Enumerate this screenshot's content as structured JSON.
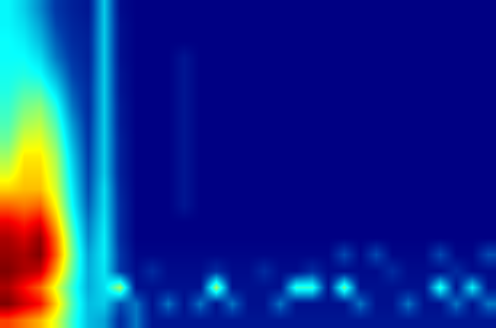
{
  "chart_data": {
    "type": "heatmap",
    "color": "Jet",
    "tick_labels": false,
    "cells": [
      [
        0.35,
        0.3,
        0.22,
        0.12,
        0.08,
        0.06,
        0.3,
        0.04,
        0.02,
        0.02,
        0.02,
        0.02,
        0.02,
        0.02,
        0.02,
        0.02,
        0.02,
        0.02,
        0.02,
        0.02,
        0.02,
        0.02,
        0.02,
        0.02,
        0.02,
        0.02,
        0.02,
        0.02,
        0.02,
        0.02,
        0.02
      ],
      [
        0.35,
        0.32,
        0.25,
        0.14,
        0.09,
        0.07,
        0.3,
        0.05,
        0.02,
        0.02,
        0.02,
        0.02,
        0.02,
        0.02,
        0.02,
        0.02,
        0.02,
        0.02,
        0.02,
        0.02,
        0.02,
        0.02,
        0.02,
        0.02,
        0.02,
        0.02,
        0.02,
        0.02,
        0.02,
        0.02,
        0.02
      ],
      [
        0.36,
        0.34,
        0.28,
        0.17,
        0.1,
        0.08,
        0.3,
        0.05,
        0.02,
        0.02,
        0.02,
        0.02,
        0.02,
        0.02,
        0.02,
        0.02,
        0.02,
        0.02,
        0.02,
        0.02,
        0.02,
        0.02,
        0.02,
        0.02,
        0.02,
        0.02,
        0.02,
        0.02,
        0.02,
        0.02,
        0.02
      ],
      [
        0.36,
        0.36,
        0.32,
        0.2,
        0.12,
        0.08,
        0.3,
        0.05,
        0.02,
        0.02,
        0.02,
        0.06,
        0.02,
        0.02,
        0.02,
        0.02,
        0.02,
        0.02,
        0.02,
        0.02,
        0.02,
        0.02,
        0.02,
        0.02,
        0.02,
        0.02,
        0.02,
        0.02,
        0.02,
        0.02,
        0.02
      ],
      [
        0.37,
        0.38,
        0.36,
        0.26,
        0.14,
        0.09,
        0.3,
        0.06,
        0.02,
        0.02,
        0.02,
        0.06,
        0.02,
        0.02,
        0.02,
        0.02,
        0.02,
        0.02,
        0.02,
        0.02,
        0.02,
        0.02,
        0.02,
        0.02,
        0.02,
        0.02,
        0.02,
        0.02,
        0.02,
        0.02,
        0.02
      ],
      [
        0.38,
        0.42,
        0.42,
        0.32,
        0.17,
        0.1,
        0.3,
        0.06,
        0.02,
        0.02,
        0.02,
        0.06,
        0.02,
        0.02,
        0.02,
        0.02,
        0.02,
        0.02,
        0.02,
        0.02,
        0.02,
        0.02,
        0.02,
        0.02,
        0.02,
        0.02,
        0.02,
        0.02,
        0.02,
        0.02,
        0.02
      ],
      [
        0.4,
        0.46,
        0.48,
        0.38,
        0.2,
        0.1,
        0.3,
        0.07,
        0.02,
        0.02,
        0.02,
        0.06,
        0.02,
        0.02,
        0.02,
        0.02,
        0.02,
        0.02,
        0.02,
        0.02,
        0.02,
        0.02,
        0.02,
        0.02,
        0.02,
        0.02,
        0.02,
        0.02,
        0.02,
        0.02,
        0.02
      ],
      [
        0.42,
        0.5,
        0.52,
        0.42,
        0.24,
        0.11,
        0.3,
        0.07,
        0.02,
        0.02,
        0.02,
        0.06,
        0.02,
        0.02,
        0.02,
        0.02,
        0.02,
        0.02,
        0.02,
        0.02,
        0.02,
        0.02,
        0.02,
        0.02,
        0.02,
        0.02,
        0.02,
        0.02,
        0.02,
        0.02,
        0.02
      ],
      [
        0.45,
        0.55,
        0.56,
        0.46,
        0.27,
        0.12,
        0.3,
        0.08,
        0.02,
        0.02,
        0.02,
        0.06,
        0.02,
        0.02,
        0.02,
        0.02,
        0.02,
        0.02,
        0.02,
        0.02,
        0.02,
        0.02,
        0.02,
        0.02,
        0.02,
        0.02,
        0.02,
        0.02,
        0.02,
        0.02,
        0.02
      ],
      [
        0.5,
        0.6,
        0.6,
        0.5,
        0.3,
        0.13,
        0.3,
        0.08,
        0.02,
        0.02,
        0.02,
        0.06,
        0.02,
        0.02,
        0.02,
        0.02,
        0.02,
        0.02,
        0.02,
        0.02,
        0.02,
        0.02,
        0.02,
        0.02,
        0.02,
        0.02,
        0.02,
        0.02,
        0.02,
        0.02,
        0.02
      ],
      [
        0.55,
        0.62,
        0.62,
        0.52,
        0.32,
        0.14,
        0.3,
        0.08,
        0.02,
        0.02,
        0.02,
        0.06,
        0.02,
        0.02,
        0.02,
        0.02,
        0.02,
        0.02,
        0.02,
        0.02,
        0.02,
        0.02,
        0.02,
        0.02,
        0.02,
        0.02,
        0.02,
        0.02,
        0.02,
        0.02,
        0.02
      ],
      [
        0.62,
        0.64,
        0.64,
        0.54,
        0.34,
        0.15,
        0.32,
        0.09,
        0.02,
        0.02,
        0.02,
        0.06,
        0.02,
        0.02,
        0.02,
        0.02,
        0.02,
        0.02,
        0.02,
        0.02,
        0.02,
        0.02,
        0.02,
        0.02,
        0.02,
        0.02,
        0.02,
        0.02,
        0.02,
        0.02,
        0.02
      ],
      [
        0.72,
        0.7,
        0.72,
        0.58,
        0.36,
        0.17,
        0.32,
        0.1,
        0.02,
        0.02,
        0.02,
        0.06,
        0.02,
        0.02,
        0.02,
        0.02,
        0.02,
        0.02,
        0.02,
        0.02,
        0.02,
        0.02,
        0.02,
        0.02,
        0.02,
        0.02,
        0.02,
        0.02,
        0.02,
        0.02,
        0.02
      ],
      [
        0.82,
        0.78,
        0.82,
        0.64,
        0.4,
        0.2,
        0.33,
        0.1,
        0.02,
        0.02,
        0.02,
        0.02,
        0.02,
        0.02,
        0.02,
        0.02,
        0.02,
        0.02,
        0.02,
        0.02,
        0.02,
        0.02,
        0.02,
        0.02,
        0.02,
        0.02,
        0.02,
        0.02,
        0.02,
        0.02,
        0.02
      ],
      [
        0.88,
        0.84,
        0.9,
        0.7,
        0.44,
        0.22,
        0.34,
        0.1,
        0.02,
        0.02,
        0.02,
        0.02,
        0.02,
        0.02,
        0.02,
        0.02,
        0.02,
        0.02,
        0.02,
        0.02,
        0.02,
        0.02,
        0.02,
        0.02,
        0.02,
        0.02,
        0.02,
        0.02,
        0.02,
        0.02,
        0.02
      ],
      [
        0.9,
        0.88,
        0.92,
        0.72,
        0.46,
        0.25,
        0.34,
        0.12,
        0.03,
        0.03,
        0.03,
        0.03,
        0.03,
        0.03,
        0.03,
        0.03,
        0.03,
        0.03,
        0.03,
        0.03,
        0.03,
        0.15,
        0.03,
        0.15,
        0.03,
        0.03,
        0.03,
        0.15,
        0.03,
        0.03,
        0.15
      ],
      [
        0.92,
        0.88,
        0.86,
        0.66,
        0.44,
        0.26,
        0.33,
        0.12,
        0.04,
        0.1,
        0.04,
        0.04,
        0.04,
        0.1,
        0.04,
        0.04,
        0.1,
        0.04,
        0.04,
        0.1,
        0.04,
        0.04,
        0.04,
        0.04,
        0.1,
        0.04,
        0.04,
        0.04,
        0.1,
        0.04,
        0.04
      ],
      [
        0.88,
        0.8,
        0.72,
        0.56,
        0.4,
        0.26,
        0.32,
        0.5,
        0.05,
        0.05,
        0.05,
        0.05,
        0.05,
        0.5,
        0.05,
        0.05,
        0.05,
        0.05,
        0.4,
        0.4,
        0.05,
        0.45,
        0.05,
        0.05,
        0.05,
        0.05,
        0.05,
        0.4,
        0.05,
        0.35,
        0.05
      ],
      [
        0.92,
        0.85,
        0.8,
        0.62,
        0.42,
        0.28,
        0.3,
        0.15,
        0.2,
        0.05,
        0.2,
        0.05,
        0.2,
        0.05,
        0.2,
        0.05,
        0.05,
        0.2,
        0.05,
        0.05,
        0.05,
        0.05,
        0.2,
        0.05,
        0.05,
        0.2,
        0.05,
        0.05,
        0.2,
        0.05,
        0.2
      ],
      [
        0.75,
        0.7,
        0.65,
        0.55,
        0.4,
        0.28,
        0.25,
        0.1,
        0.2,
        0.06,
        0.06,
        0.06,
        0.06,
        0.06,
        0.06,
        0.06,
        0.06,
        0.06,
        0.06,
        0.06,
        0.06,
        0.06,
        0.06,
        0.06,
        0.06,
        0.06,
        0.06,
        0.06,
        0.06,
        0.06,
        0.06
      ]
    ]
  }
}
